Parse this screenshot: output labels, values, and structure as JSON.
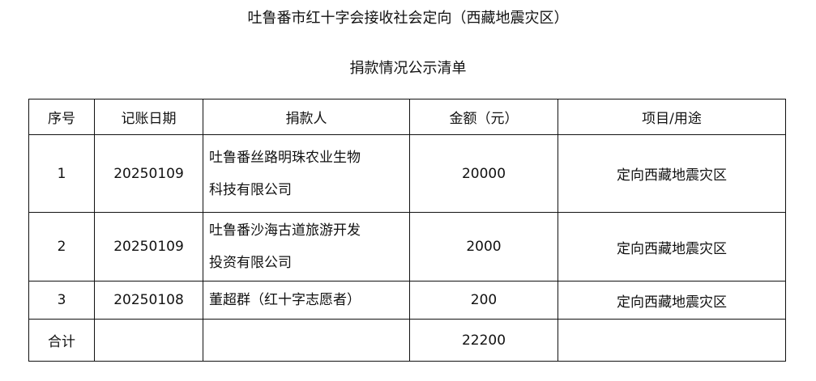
{
  "title_line1": "吐鲁番市红十字会接收社会定向（西藏地震灾区）",
  "title_line2": "捐款情况公示清单",
  "table": {
    "headers": [
      "序号",
      "记账日期",
      "捐款人",
      "金额（元）",
      "项目/用途"
    ],
    "rows": [
      {
        "no": "1",
        "date": "20250109",
        "donor_line1": "吐鲁番丝路明珠农业生物",
        "donor_line2": "科技有限公司",
        "amount": "20000",
        "purpose": "定向西藏地震灾区"
      },
      {
        "no": "2",
        "date": "20250109",
        "donor_line1": "吐鲁番沙海古道旅游开发",
        "donor_line2": "投资有限公司",
        "amount": "2000",
        "purpose": "定向西藏地震灾区"
      },
      {
        "no": "3",
        "date": "20250108",
        "donor_line1": "董超群（红十字志愿者）",
        "amount": "200",
        "purpose": "定向西藏地震灾区"
      }
    ],
    "total": {
      "label": "合计",
      "amount": "22200"
    }
  }
}
